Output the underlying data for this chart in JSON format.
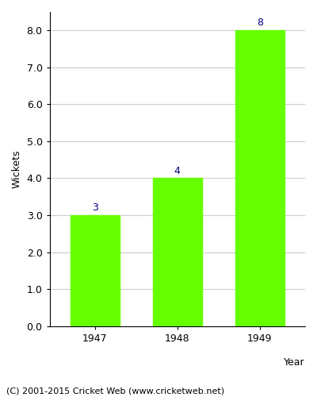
{
  "years": [
    "1947",
    "1948",
    "1949"
  ],
  "values": [
    3,
    4,
    8
  ],
  "bar_color": "#66ff00",
  "bar_width": 0.6,
  "xlabel": "Year",
  "ylabel": "Wickets",
  "ylim": [
    0,
    8.5
  ],
  "yticks": [
    0.0,
    1.0,
    2.0,
    3.0,
    4.0,
    5.0,
    6.0,
    7.0,
    8.0
  ],
  "annotation_color": "#000080",
  "annotation_fontsize": 9,
  "axis_label_fontsize": 9,
  "tick_fontsize": 9,
  "footer_text": "(C) 2001-2015 Cricket Web (www.cricketweb.net)",
  "footer_fontsize": 8,
  "background_color": "#ffffff",
  "grid_color": "#cccccc"
}
